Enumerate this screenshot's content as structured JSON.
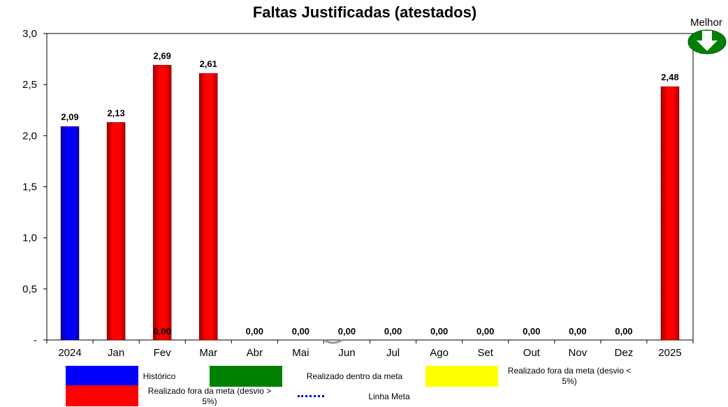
{
  "chart_data": {
    "type": "bar",
    "title": "Faltas Justificadas (atestados)",
    "categories": [
      "2024",
      "Jan",
      "Fev",
      "Mar",
      "Abr",
      "Mai",
      "Jun",
      "Jul",
      "Ago",
      "Set",
      "Out",
      "Nov",
      "Dez",
      "2025"
    ],
    "values": [
      2.09,
      2.13,
      2.69,
      2.61,
      0,
      0,
      0,
      0,
      0,
      0,
      0,
      0,
      0,
      2.48
    ],
    "value_labels": [
      "2,09",
      "2,13",
      "2,69",
      "2,61",
      "0,00",
      "0,00",
      "0,00",
      "0,00",
      "0,00",
      "0,00",
      "0,00",
      "0,00",
      "0,00",
      "2,48"
    ],
    "bar_status": [
      "historico",
      "fora_maior",
      "fora_maior",
      "fora_maior",
      "none",
      "none",
      "none",
      "none",
      "none",
      "none",
      "none",
      "none",
      "none",
      "fora_maior"
    ],
    "extra_label": {
      "category": "Fev",
      "text": "0,00"
    },
    "y_ticks": [
      "-",
      "0,5",
      "1,0",
      "1,5",
      "2,0",
      "2,5",
      "3,0"
    ],
    "y_tick_values": [
      0,
      0.5,
      1.0,
      1.5,
      2.0,
      2.5,
      3.0
    ],
    "ylim": [
      0,
      3.0
    ],
    "grid": false,
    "legend_position": "bottom",
    "legend": [
      {
        "key": "historico",
        "label": "Histórico",
        "color": "#0000ff"
      },
      {
        "key": "dentro",
        "label": "Realizado dentro da meta",
        "color": "#008000"
      },
      {
        "key": "fora_menor",
        "label": "Realizado fora da meta (desvio < 5%)",
        "color": "#ffff00"
      },
      {
        "key": "fora_maior",
        "label": "Realizado fora da meta (desvio > 5%)",
        "color": "#ff0000"
      },
      {
        "key": "meta",
        "label": "Linha Meta",
        "color": "#0000cc"
      }
    ]
  },
  "indicator": {
    "label": "Melhor",
    "icon": "down-arrow-icon",
    "color": "#008000"
  }
}
